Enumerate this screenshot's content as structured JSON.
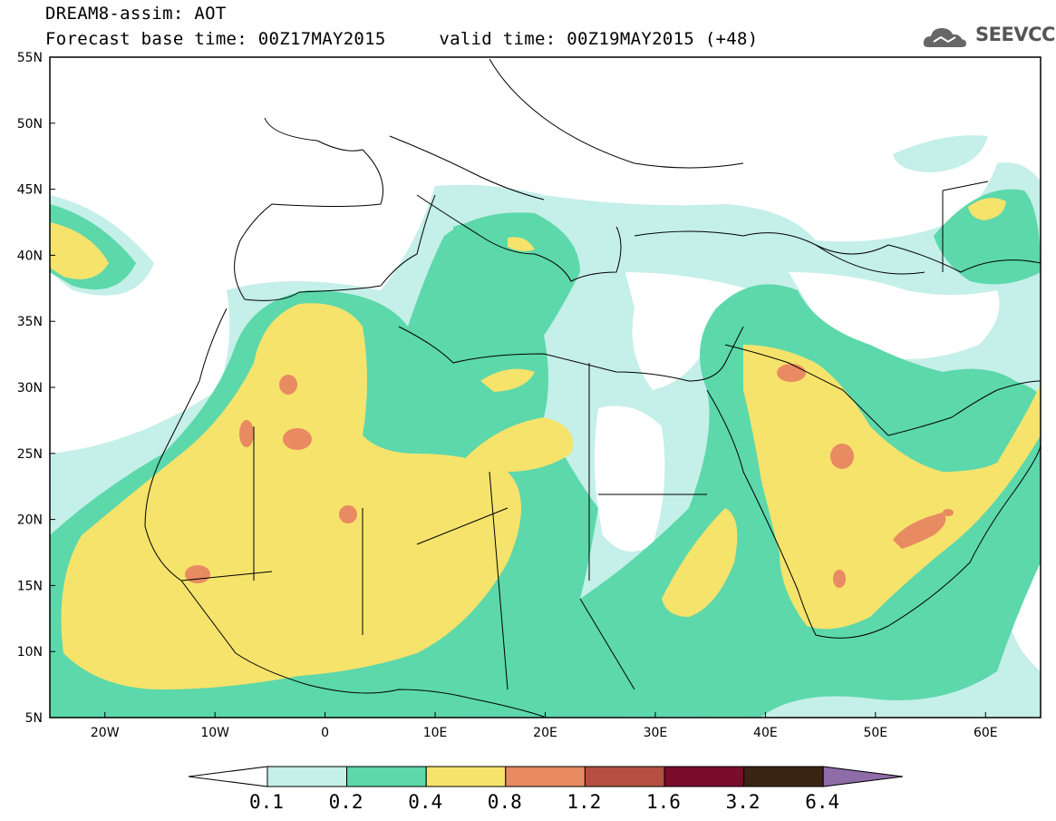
{
  "header": {
    "line1": "DREAM8-assim: AOT",
    "line2": "Forecast base time: 00Z17MAY2015     valid time: 00Z19MAY2015 (+48)"
  },
  "logo": {
    "text": "SEEVCCC",
    "icon": "cloud-icon"
  },
  "map": {
    "lat_labels": [
      "55N",
      "50N",
      "45N",
      "40N",
      "35N",
      "30N",
      "25N",
      "20N",
      "15N",
      "10N",
      "5N"
    ],
    "lon_labels": [
      "20W",
      "10W",
      "0",
      "10E",
      "20E",
      "30E",
      "40E",
      "50E",
      "60E"
    ],
    "lon_range": [
      -25,
      65
    ],
    "lat_range": [
      5,
      55
    ]
  },
  "legend": {
    "labels": [
      "0.1",
      "0.2",
      "0.4",
      "0.8",
      "1.2",
      "1.6",
      "3.2",
      "6.4"
    ],
    "colors": [
      "#ffffff",
      "#c5efe9",
      "#5cd8ab",
      "#f6e36c",
      "#e88a62",
      "#b55040",
      "#7a0c2c",
      "#3a2414",
      "#8e6ca8"
    ]
  }
}
